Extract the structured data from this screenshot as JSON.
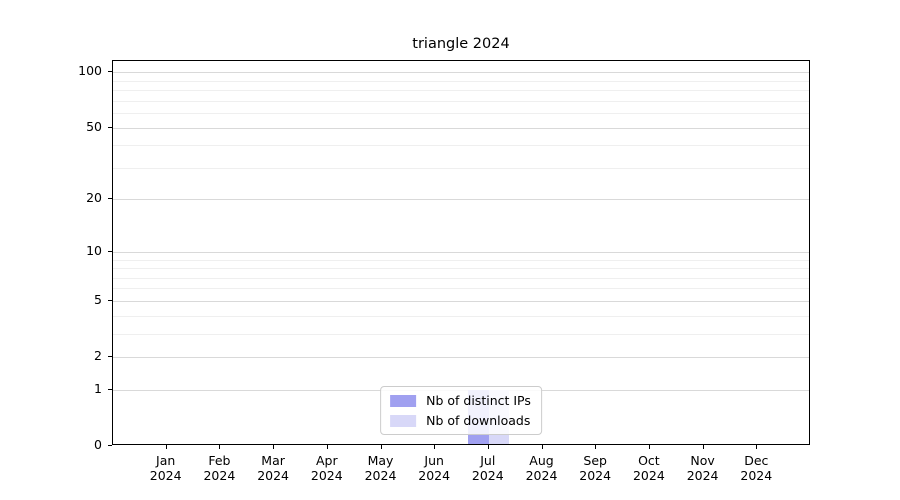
{
  "chart_data": {
    "type": "bar",
    "title": "triangle 2024",
    "categories": [
      "Jan",
      "Feb",
      "Mar",
      "Apr",
      "May",
      "Jun",
      "Jul",
      "Aug",
      "Sep",
      "Oct",
      "Nov",
      "Dec"
    ],
    "x_year_label": "2024",
    "series": [
      {
        "name": "Nb of distinct IPs",
        "color": "#a0a0f0",
        "values": [
          0,
          0,
          0,
          0,
          0,
          0,
          1,
          0,
          0,
          0,
          0,
          0
        ]
      },
      {
        "name": "Nb of downloads",
        "color": "#d8d8f8",
        "values": [
          0,
          0,
          0,
          0,
          0,
          0,
          1,
          0,
          0,
          0,
          0,
          0
        ]
      }
    ],
    "yscale": "log1p",
    "ylim": [
      0,
      115
    ],
    "y_major_ticks": [
      0,
      1,
      2,
      5,
      10,
      20,
      50,
      100
    ],
    "y_minor_gridlines": [
      3,
      4,
      6,
      7,
      8,
      9,
      30,
      40,
      60,
      70,
      80,
      90
    ],
    "grid": "horizontal",
    "legend_position": "lower center",
    "colors": {
      "major_grid": "#d9d9d9",
      "minor_grid": "#efefef",
      "spine": "#000000",
      "background": "#ffffff"
    }
  }
}
